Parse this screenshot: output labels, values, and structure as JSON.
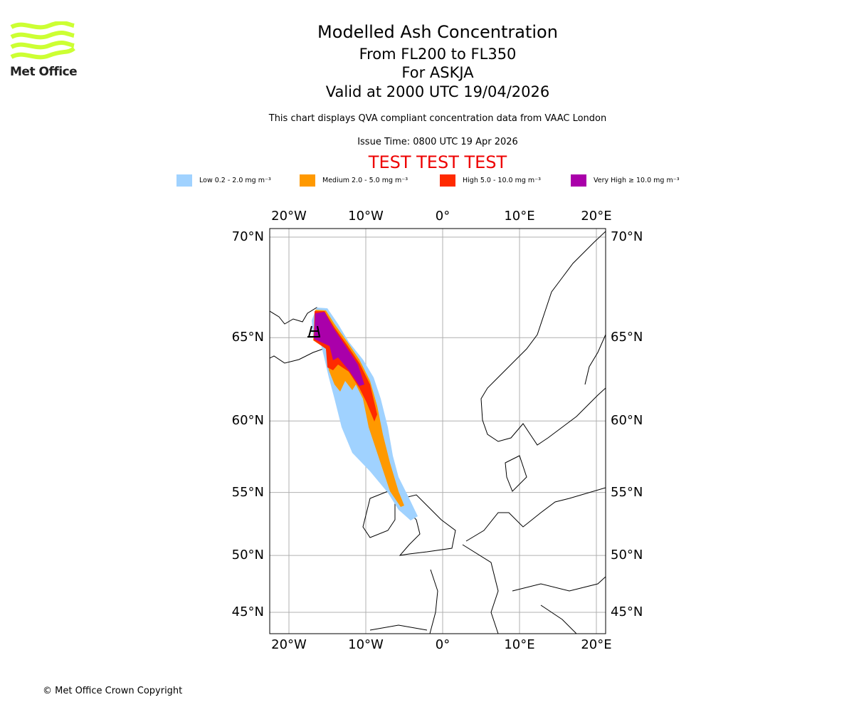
{
  "logo": {
    "text": "Met Office",
    "color": "#ccff33"
  },
  "title": {
    "line1": "Modelled Ash Concentration",
    "line2": "From FL200 to FL350",
    "line3": "For ASKJA",
    "line4": "Valid at 2000 UTC 19/04/2026"
  },
  "subtitle": "This chart displays QVA compliant concentration data from VAAC London",
  "issue_time": "Issue Time: 0800 UTC 19 Apr 2026",
  "test_banner": "TEST TEST TEST",
  "legend": [
    {
      "label": "Low 0.2 - 2.0 mg m⁻³",
      "color": "#a0d2ff"
    },
    {
      "label": "Medium 2.0 - 5.0 mg m⁻³",
      "color": "#ff9900"
    },
    {
      "label": "High 5.0 - 10.0 mg m⁻³",
      "color": "#ff2a00"
    },
    {
      "label": "Very High ≥ 10.0 mg m⁻³",
      "color": "#aa00aa"
    }
  ],
  "map": {
    "lon_ticks": [
      {
        "value": -20,
        "label": "20°W"
      },
      {
        "value": -10,
        "label": "10°W"
      },
      {
        "value": 0,
        "label": "0°"
      },
      {
        "value": 10,
        "label": "10°E"
      },
      {
        "value": 20,
        "label": "20°E"
      }
    ],
    "lat_ticks": [
      {
        "value": 70,
        "label": "70°N"
      },
      {
        "value": 65,
        "label": "65°N"
      },
      {
        "value": 60,
        "label": "60°N"
      },
      {
        "value": 55,
        "label": "55°N"
      },
      {
        "value": 50,
        "label": "50°N"
      },
      {
        "value": 45,
        "label": "45°N"
      }
    ]
  },
  "copyright": "© Met Office Crown Copyright"
}
